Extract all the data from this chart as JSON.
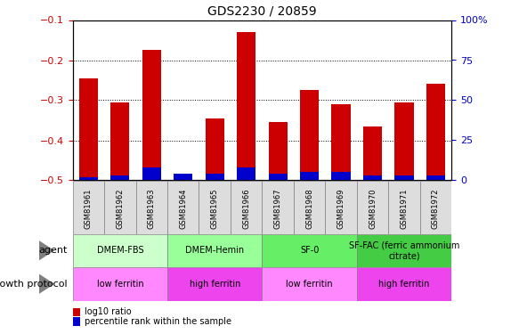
{
  "title": "GDS2230 / 20859",
  "samples": [
    "GSM81961",
    "GSM81962",
    "GSM81963",
    "GSM81964",
    "GSM81965",
    "GSM81966",
    "GSM81967",
    "GSM81968",
    "GSM81969",
    "GSM81970",
    "GSM81971",
    "GSM81972"
  ],
  "log10_ratio": [
    -0.245,
    -0.305,
    -0.175,
    -0.485,
    -0.345,
    -0.13,
    -0.355,
    -0.275,
    -0.31,
    -0.365,
    -0.305,
    -0.26
  ],
  "percentile_rank": [
    2,
    3,
    8,
    4,
    4,
    8,
    4,
    5,
    5,
    3,
    3,
    3
  ],
  "ylim_left": [
    -0.5,
    -0.1
  ],
  "ylim_right": [
    0,
    100
  ],
  "yticks_left": [
    -0.5,
    -0.4,
    -0.3,
    -0.2,
    -0.1
  ],
  "yticks_right": [
    0,
    25,
    50,
    75,
    100
  ],
  "bar_color_red": "#cc0000",
  "bar_color_blue": "#0000cc",
  "agent_groups": [
    {
      "label": "DMEM-FBS",
      "start": 0,
      "end": 2,
      "color": "#ccffcc"
    },
    {
      "label": "DMEM-Hemin",
      "start": 3,
      "end": 5,
      "color": "#99ff99"
    },
    {
      "label": "SF-0",
      "start": 6,
      "end": 8,
      "color": "#66ee66"
    },
    {
      "label": "SF-FAC (ferric ammonium\ncitrate)",
      "start": 9,
      "end": 11,
      "color": "#44cc44"
    }
  ],
  "growth_groups": [
    {
      "label": "low ferritin",
      "start": 0,
      "end": 2,
      "color": "#ff88ff"
    },
    {
      "label": "high ferritin",
      "start": 3,
      "end": 5,
      "color": "#ee44ee"
    },
    {
      "label": "low ferritin",
      "start": 6,
      "end": 8,
      "color": "#ff88ff"
    },
    {
      "label": "high ferritin",
      "start": 9,
      "end": 11,
      "color": "#ee44ee"
    }
  ],
  "sample_box_color": "#dddddd",
  "legend_red_label": "log10 ratio",
  "legend_blue_label": "percentile rank within the sample",
  "agent_label": "agent",
  "growth_label": "growth protocol",
  "bg_color": "#ffffff",
  "grid_color": "#000000",
  "tick_label_color_left": "#cc0000",
  "tick_label_color_right": "#0000cc"
}
